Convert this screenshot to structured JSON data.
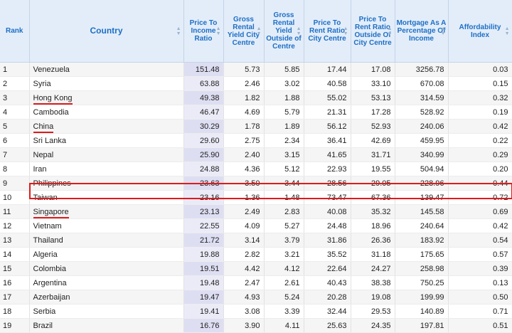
{
  "columns": [
    {
      "key": "rank",
      "label": "Rank"
    },
    {
      "key": "country",
      "label": "Country"
    },
    {
      "key": "price_to_income",
      "label": "Price To Income Ratio"
    },
    {
      "key": "gross_yield_centre",
      "label": "Gross Rental Yield City Centre"
    },
    {
      "key": "gross_yield_outside",
      "label": "Gross Rental Yield Outside of Centre"
    },
    {
      "key": "price_rent_centre",
      "label": "Price To Rent Ratio City Centre"
    },
    {
      "key": "price_rent_outside",
      "label": "Price To Rent Ratio Outside Of City Centre"
    },
    {
      "key": "mortgage_pct",
      "label": "Mortgage As A Percentage Of Income"
    },
    {
      "key": "affordability",
      "label": "Affordability Index"
    }
  ],
  "sorted_column": "price_to_income",
  "highlighted_row": 10,
  "underlined_rows": [
    3,
    5,
    11
  ],
  "accent_color": "#e01a1a",
  "rows": [
    {
      "rank": "1",
      "country": "Venezuela",
      "price_to_income": "151.48",
      "gross_yield_centre": "5.73",
      "gross_yield_outside": "5.85",
      "price_rent_centre": "17.44",
      "price_rent_outside": "17.08",
      "mortgage_pct": "3256.78",
      "affordability": "0.03"
    },
    {
      "rank": "2",
      "country": "Syria",
      "price_to_income": "63.88",
      "gross_yield_centre": "2.46",
      "gross_yield_outside": "3.02",
      "price_rent_centre": "40.58",
      "price_rent_outside": "33.10",
      "mortgage_pct": "670.08",
      "affordability": "0.15"
    },
    {
      "rank": "3",
      "country": "Hong Kong",
      "price_to_income": "49.38",
      "gross_yield_centre": "1.82",
      "gross_yield_outside": "1.88",
      "price_rent_centre": "55.02",
      "price_rent_outside": "53.13",
      "mortgage_pct": "314.59",
      "affordability": "0.32"
    },
    {
      "rank": "4",
      "country": "Cambodia",
      "price_to_income": "46.47",
      "gross_yield_centre": "4.69",
      "gross_yield_outside": "5.79",
      "price_rent_centre": "21.31",
      "price_rent_outside": "17.28",
      "mortgage_pct": "528.92",
      "affordability": "0.19"
    },
    {
      "rank": "5",
      "country": "China",
      "price_to_income": "30.29",
      "gross_yield_centre": "1.78",
      "gross_yield_outside": "1.89",
      "price_rent_centre": "56.12",
      "price_rent_outside": "52.93",
      "mortgage_pct": "240.06",
      "affordability": "0.42"
    },
    {
      "rank": "6",
      "country": "Sri Lanka",
      "price_to_income": "29.60",
      "gross_yield_centre": "2.75",
      "gross_yield_outside": "2.34",
      "price_rent_centre": "36.41",
      "price_rent_outside": "42.69",
      "mortgage_pct": "459.95",
      "affordability": "0.22"
    },
    {
      "rank": "7",
      "country": "Nepal",
      "price_to_income": "25.90",
      "gross_yield_centre": "2.40",
      "gross_yield_outside": "3.15",
      "price_rent_centre": "41.65",
      "price_rent_outside": "31.71",
      "mortgage_pct": "340.99",
      "affordability": "0.29"
    },
    {
      "rank": "8",
      "country": "Iran",
      "price_to_income": "24.88",
      "gross_yield_centre": "4.36",
      "gross_yield_outside": "5.12",
      "price_rent_centre": "22.93",
      "price_rent_outside": "19.55",
      "mortgage_pct": "504.94",
      "affordability": "0.20"
    },
    {
      "rank": "9",
      "country": "Philippines",
      "price_to_income": "23.63",
      "gross_yield_centre": "3.50",
      "gross_yield_outside": "3.44",
      "price_rent_centre": "28.56",
      "price_rent_outside": "29.05",
      "mortgage_pct": "228.96",
      "affordability": "0.44"
    },
    {
      "rank": "10",
      "country": "Taiwan",
      "price_to_income": "23.16",
      "gross_yield_centre": "1.36",
      "gross_yield_outside": "1.48",
      "price_rent_centre": "73.47",
      "price_rent_outside": "67.36",
      "mortgage_pct": "139.47",
      "affordability": "0.72"
    },
    {
      "rank": "11",
      "country": "Singapore",
      "price_to_income": "23.13",
      "gross_yield_centre": "2.49",
      "gross_yield_outside": "2.83",
      "price_rent_centre": "40.08",
      "price_rent_outside": "35.32",
      "mortgage_pct": "145.58",
      "affordability": "0.69"
    },
    {
      "rank": "12",
      "country": "Vietnam",
      "price_to_income": "22.55",
      "gross_yield_centre": "4.09",
      "gross_yield_outside": "5.27",
      "price_rent_centre": "24.48",
      "price_rent_outside": "18.96",
      "mortgage_pct": "240.64",
      "affordability": "0.42"
    },
    {
      "rank": "13",
      "country": "Thailand",
      "price_to_income": "21.72",
      "gross_yield_centre": "3.14",
      "gross_yield_outside": "3.79",
      "price_rent_centre": "31.86",
      "price_rent_outside": "26.36",
      "mortgage_pct": "183.92",
      "affordability": "0.54"
    },
    {
      "rank": "14",
      "country": "Algeria",
      "price_to_income": "19.88",
      "gross_yield_centre": "2.82",
      "gross_yield_outside": "3.21",
      "price_rent_centre": "35.52",
      "price_rent_outside": "31.18",
      "mortgage_pct": "175.65",
      "affordability": "0.57"
    },
    {
      "rank": "15",
      "country": "Colombia",
      "price_to_income": "19.51",
      "gross_yield_centre": "4.42",
      "gross_yield_outside": "4.12",
      "price_rent_centre": "22.64",
      "price_rent_outside": "24.27",
      "mortgage_pct": "258.98",
      "affordability": "0.39"
    },
    {
      "rank": "16",
      "country": "Argentina",
      "price_to_income": "19.48",
      "gross_yield_centre": "2.47",
      "gross_yield_outside": "2.61",
      "price_rent_centre": "40.43",
      "price_rent_outside": "38.38",
      "mortgage_pct": "750.25",
      "affordability": "0.13"
    },
    {
      "rank": "17",
      "country": "Azerbaijan",
      "price_to_income": "19.47",
      "gross_yield_centre": "4.93",
      "gross_yield_outside": "5.24",
      "price_rent_centre": "20.28",
      "price_rent_outside": "19.08",
      "mortgage_pct": "199.99",
      "affordability": "0.50"
    },
    {
      "rank": "18",
      "country": "Serbia",
      "price_to_income": "19.41",
      "gross_yield_centre": "3.08",
      "gross_yield_outside": "3.39",
      "price_rent_centre": "32.44",
      "price_rent_outside": "29.53",
      "mortgage_pct": "140.89",
      "affordability": "0.71"
    },
    {
      "rank": "19",
      "country": "Brazil",
      "price_to_income": "16.76",
      "gross_yield_centre": "3.90",
      "gross_yield_outside": "4.11",
      "price_rent_centre": "25.63",
      "price_rent_outside": "24.35",
      "mortgage_pct": "197.81",
      "affordability": "0.51"
    }
  ]
}
